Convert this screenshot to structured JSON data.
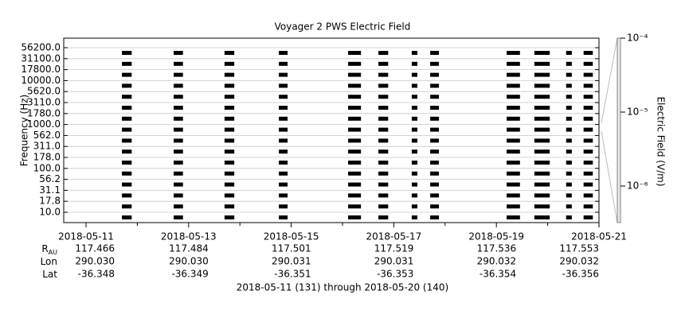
{
  "chart_data": {
    "type": "spectrogram",
    "title": "Voyager 2 PWS Electric Field",
    "ylabel": "Frequency (Hz)",
    "y2label": "Electric Field (V/m)",
    "footer": "2018-05-11 (131) through 2018-05-20 (140)",
    "color": "#000000",
    "grid": true,
    "xlim": [
      "2018-05-10T13:34",
      "2018-05-21T00:00"
    ],
    "xticks": [
      "2018-05-11",
      "2018-05-13",
      "2018-05-15",
      "2018-05-17",
      "2018-05-19",
      "2018-05-21"
    ],
    "xminorticks": [
      "2018-05-12",
      "2018-05-14",
      "2018-05-16",
      "2018-05-18",
      "2018-05-20"
    ],
    "yticks": [
      {
        "value": 56200,
        "label": "56200.0"
      },
      {
        "value": 31100,
        "label": "31100.0"
      },
      {
        "value": 17800,
        "label": "17800.0"
      },
      {
        "value": 10000,
        "label": "10000.0"
      },
      {
        "value": 5620,
        "label": "5620.0"
      },
      {
        "value": 3110,
        "label": "3110.0"
      },
      {
        "value": 1780,
        "label": "1780.0"
      },
      {
        "value": 1000,
        "label": "1000.0"
      },
      {
        "value": 562,
        "label": "562.0"
      },
      {
        "value": 311,
        "label": "311.0"
      },
      {
        "value": 178,
        "label": "178.0"
      },
      {
        "value": 100,
        "label": "100.0"
      },
      {
        "value": 56.2,
        "label": "56.2"
      },
      {
        "value": 31.1,
        "label": "31.1"
      },
      {
        "value": 17.8,
        "label": "17.8"
      },
      {
        "value": 10,
        "label": "10.0"
      }
    ],
    "segments": [
      [
        "2018-05-11T16:48",
        "2018-05-11T21:22"
      ],
      [
        "2018-05-12T17:02",
        "2018-05-12T21:22"
      ],
      [
        "2018-05-13T16:48",
        "2018-05-13T21:22"
      ],
      [
        "2018-05-14T18:14",
        "2018-05-14T22:19"
      ],
      [
        "2018-05-16T02:38",
        "2018-05-16T08:38"
      ],
      [
        "2018-05-16T16:48",
        "2018-05-16T21:22"
      ],
      [
        "2018-05-17T08:24",
        "2018-05-17T11:02"
      ],
      [
        "2018-05-17T17:02",
        "2018-05-17T21:07"
      ],
      [
        "2018-05-19T04:48",
        "2018-05-19T11:02"
      ],
      [
        "2018-05-19T17:46",
        "2018-05-20T00:58"
      ],
      [
        "2018-05-20T08:38",
        "2018-05-20T11:17"
      ],
      [
        "2018-05-20T16:48",
        "2018-05-20T21:07"
      ]
    ],
    "y2scale": "log",
    "y2lim": [
      3.2e-07,
      0.0001
    ],
    "y2ticks": [
      {
        "value": 0.0001,
        "label": "10⁻⁴"
      },
      {
        "value": 1e-05,
        "label": "10⁻⁵"
      },
      {
        "value": 1e-06,
        "label": "10⁻⁶"
      }
    ],
    "ephemeris": [
      {
        "label": "R",
        "sub": "AU",
        "values": [
          "117.466",
          "117.484",
          "117.501",
          "117.519",
          "117.536",
          "117.553"
        ]
      },
      {
        "label": "Lon",
        "values": [
          "290.030",
          "290.030",
          "290.031",
          "290.031",
          "290.032",
          "290.032"
        ]
      },
      {
        "label": "Lat",
        "values": [
          "-36.348",
          "-36.349",
          "-36.351",
          "-36.353",
          "-36.354",
          "-36.356"
        ]
      }
    ]
  }
}
